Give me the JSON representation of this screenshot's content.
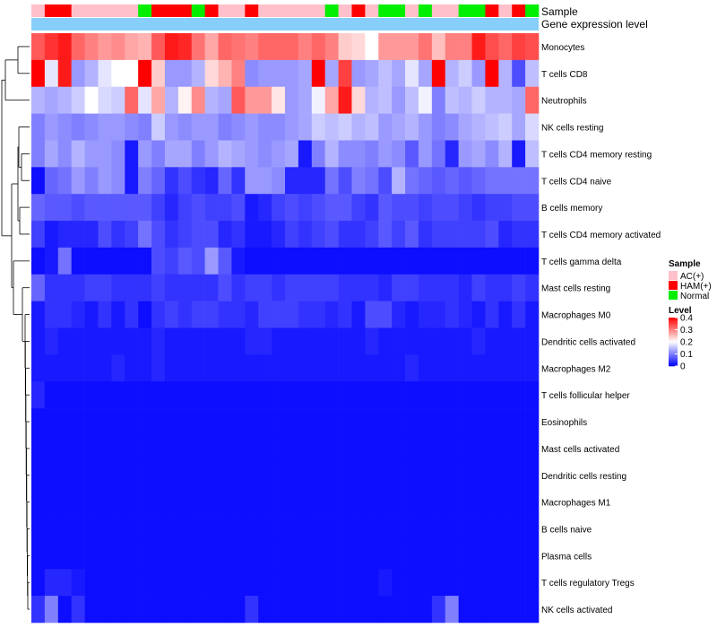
{
  "chart_data": {
    "type": "heatmap",
    "title": "",
    "annotation_labels": [
      "Sample",
      "Gene expression level"
    ],
    "sample_groups": [
      "AC(+)",
      "HAM(+)",
      "HAM(+)",
      "AC(+)",
      "AC(+)",
      "AC(+)",
      "AC(+)",
      "AC(+)",
      "Normal",
      "HAM(+)",
      "HAM(+)",
      "HAM(+)",
      "Normal",
      "HAM(+)",
      "AC(+)",
      "AC(+)",
      "HAM(+)",
      "AC(+)",
      "AC(+)",
      "AC(+)",
      "AC(+)",
      "AC(+)",
      "Normal",
      "AC(+)",
      "HAM(+)",
      "AC(+)",
      "Normal",
      "Normal",
      "AC(+)",
      "Normal",
      "AC(+)",
      "AC(+)",
      "Normal",
      "Normal",
      "HAM(+)",
      "AC(+)",
      "HAM(+)",
      "Normal"
    ],
    "rows": [
      {
        "name": "Monocytes",
        "values": [
          0.33,
          0.36,
          0.38,
          0.32,
          0.3,
          0.28,
          0.29,
          0.27,
          0.26,
          0.33,
          0.38,
          0.37,
          0.31,
          0.27,
          0.32,
          0.31,
          0.3,
          0.32,
          0.32,
          0.32,
          0.3,
          0.32,
          0.3,
          0.24,
          0.23,
          0.2,
          0.28,
          0.28,
          0.28,
          0.31,
          0.25,
          0.3,
          0.3,
          0.38,
          0.34,
          0.32,
          0.35,
          0.34
        ]
      },
      {
        "name": "T cells CD8",
        "values": [
          0.4,
          0.18,
          0.38,
          0.12,
          0.14,
          0.18,
          0.2,
          0.2,
          0.4,
          0.24,
          0.12,
          0.12,
          0.14,
          0.23,
          0.26,
          0.3,
          0.11,
          0.12,
          0.12,
          0.12,
          0.13,
          0.4,
          0.13,
          0.35,
          0.12,
          0.13,
          0.15,
          0.13,
          0.18,
          0.13,
          0.4,
          0.14,
          0.16,
          0.12,
          0.4,
          0.14,
          0.06,
          0.15
        ]
      },
      {
        "name": "Neutrophils",
        "values": [
          0.14,
          0.13,
          0.14,
          0.16,
          0.2,
          0.17,
          0.16,
          0.32,
          0.18,
          0.27,
          0.14,
          0.21,
          0.29,
          0.14,
          0.13,
          0.33,
          0.28,
          0.28,
          0.22,
          0.12,
          0.13,
          0.19,
          0.27,
          0.38,
          0.23,
          0.14,
          0.15,
          0.12,
          0.15,
          0.19,
          0.1,
          0.15,
          0.14,
          0.16,
          0.14,
          0.14,
          0.13,
          0.32
        ]
      },
      {
        "name": "NK cells resting",
        "values": [
          0.1,
          0.12,
          0.11,
          0.1,
          0.11,
          0.12,
          0.12,
          0.11,
          0.1,
          0.16,
          0.12,
          0.11,
          0.12,
          0.12,
          0.1,
          0.11,
          0.12,
          0.11,
          0.11,
          0.12,
          0.13,
          0.16,
          0.15,
          0.16,
          0.14,
          0.15,
          0.12,
          0.13,
          0.14,
          0.12,
          0.1,
          0.11,
          0.13,
          0.14,
          0.15,
          0.16,
          0.13,
          0.17
        ]
      },
      {
        "name": "T cells CD4 memory resting",
        "values": [
          0.1,
          0.13,
          0.11,
          0.14,
          0.12,
          0.12,
          0.11,
          0.02,
          0.12,
          0.1,
          0.13,
          0.13,
          0.1,
          0.12,
          0.14,
          0.13,
          0.12,
          0.11,
          0.12,
          0.13,
          0.02,
          0.1,
          0.14,
          0.11,
          0.11,
          0.1,
          0.12,
          0.11,
          0.07,
          0.12,
          0.09,
          0.03,
          0.12,
          0.13,
          0.11,
          0.14,
          0.02,
          0.15
        ]
      },
      {
        "name": "T cells CD4 naive",
        "values": [
          0.01,
          0.08,
          0.09,
          0.12,
          0.1,
          0.12,
          0.11,
          0.02,
          0.1,
          0.08,
          0.04,
          0.06,
          0.04,
          0.03,
          0.08,
          0.04,
          0.12,
          0.12,
          0.11,
          0.03,
          0.03,
          0.03,
          0.09,
          0.06,
          0.1,
          0.09,
          0.06,
          0.14,
          0.09,
          0.08,
          0.07,
          0.08,
          0.07,
          0.08,
          0.09,
          0.09,
          0.09,
          0.09
        ]
      },
      {
        "name": "B cells memory",
        "values": [
          0.08,
          0.07,
          0.07,
          0.06,
          0.07,
          0.07,
          0.07,
          0.07,
          0.07,
          0.05,
          0.03,
          0.05,
          0.06,
          0.05,
          0.05,
          0.06,
          0.02,
          0.03,
          0.05,
          0.06,
          0.05,
          0.06,
          0.07,
          0.07,
          0.05,
          0.04,
          0.07,
          0.06,
          0.06,
          0.05,
          0.06,
          0.06,
          0.05,
          0.04,
          0.05,
          0.05,
          0.06,
          0.06
        ]
      },
      {
        "name": "T cells CD4 memory activated",
        "values": [
          0.05,
          0.02,
          0.03,
          0.03,
          0.03,
          0.06,
          0.04,
          0.05,
          0.09,
          0.06,
          0.04,
          0.05,
          0.06,
          0.06,
          0.03,
          0.04,
          0.02,
          0.02,
          0.03,
          0.05,
          0.04,
          0.05,
          0.06,
          0.04,
          0.04,
          0.05,
          0.07,
          0.05,
          0.07,
          0.04,
          0.05,
          0.05,
          0.05,
          0.05,
          0.06,
          0.03,
          0.04,
          0.04
        ]
      },
      {
        "name": "T cells gamma delta",
        "values": [
          0.01,
          0.02,
          0.09,
          0.01,
          0.01,
          0.01,
          0.01,
          0.01,
          0.01,
          0.06,
          0.05,
          0.07,
          0.06,
          0.12,
          0.07,
          0.02,
          0.01,
          0.01,
          0.01,
          0.01,
          0.01,
          0.01,
          0.01,
          0.01,
          0.01,
          0.01,
          0.01,
          0.01,
          0.01,
          0.01,
          0.01,
          0.01,
          0.01,
          0.01,
          0.01,
          0.01,
          0.01,
          0.01
        ]
      },
      {
        "name": "Mast cells resting",
        "values": [
          0.08,
          0.04,
          0.04,
          0.04,
          0.05,
          0.05,
          0.04,
          0.04,
          0.04,
          0.05,
          0.04,
          0.04,
          0.04,
          0.04,
          0.06,
          0.04,
          0.05,
          0.05,
          0.04,
          0.05,
          0.05,
          0.05,
          0.05,
          0.04,
          0.04,
          0.04,
          0.03,
          0.05,
          0.05,
          0.04,
          0.04,
          0.04,
          0.03,
          0.05,
          0.04,
          0.04,
          0.05,
          0.04
        ]
      },
      {
        "name": "Macrophages M0",
        "values": [
          0.02,
          0.04,
          0.04,
          0.03,
          0.02,
          0.04,
          0.02,
          0.04,
          0.01,
          0.04,
          0.05,
          0.04,
          0.05,
          0.05,
          0.04,
          0.04,
          0.03,
          0.05,
          0.05,
          0.05,
          0.04,
          0.04,
          0.03,
          0.04,
          0.02,
          0.06,
          0.06,
          0.03,
          0.02,
          0.03,
          0.03,
          0.04,
          0.03,
          0.02,
          0.04,
          0.02,
          0.04,
          0.02
        ]
      },
      {
        "name": "Dendritic cells activated",
        "values": [
          0.02,
          0.03,
          0.02,
          0.02,
          0.02,
          0.02,
          0.02,
          0.02,
          0.02,
          0.03,
          0.02,
          0.02,
          0.02,
          0.02,
          0.02,
          0.02,
          0.03,
          0.03,
          0.02,
          0.02,
          0.02,
          0.02,
          0.02,
          0.02,
          0.02,
          0.03,
          0.02,
          0.02,
          0.02,
          0.02,
          0.02,
          0.02,
          0.02,
          0.03,
          0.02,
          0.02,
          0.02,
          0.02
        ]
      },
      {
        "name": "Macrophages M2",
        "values": [
          0.02,
          0.02,
          0.02,
          0.02,
          0.02,
          0.02,
          0.03,
          0.02,
          0.02,
          0.03,
          0.02,
          0.02,
          0.02,
          0.02,
          0.02,
          0.02,
          0.02,
          0.02,
          0.02,
          0.02,
          0.02,
          0.02,
          0.02,
          0.02,
          0.02,
          0.02,
          0.02,
          0.02,
          0.03,
          0.02,
          0.02,
          0.02,
          0.02,
          0.02,
          0.02,
          0.02,
          0.02,
          0.02
        ]
      },
      {
        "name": "T cells follicular helper",
        "values": [
          0.03,
          0.01,
          0.01,
          0.01,
          0.01,
          0.01,
          0.01,
          0.01,
          0.01,
          0.01,
          0.01,
          0.01,
          0.01,
          0.01,
          0.01,
          0.01,
          0.01,
          0.01,
          0.01,
          0.01,
          0.01,
          0.01,
          0.01,
          0.01,
          0.01,
          0.01,
          0.01,
          0.01,
          0.01,
          0.01,
          0.01,
          0.01,
          0.01,
          0.01,
          0.01,
          0.01,
          0.01,
          0.01
        ]
      },
      {
        "name": "Eosinophils",
        "values": [
          0.01,
          0.01,
          0.01,
          0.01,
          0.01,
          0.01,
          0.01,
          0.01,
          0.01,
          0.01,
          0.01,
          0.01,
          0.01,
          0.01,
          0.01,
          0.01,
          0.01,
          0.01,
          0.01,
          0.01,
          0.01,
          0.01,
          0.01,
          0.01,
          0.01,
          0.01,
          0.01,
          0.01,
          0.01,
          0.01,
          0.01,
          0.01,
          0.01,
          0.01,
          0.01,
          0.01,
          0.01,
          0.01
        ]
      },
      {
        "name": "Mast cells activated",
        "values": [
          0.01,
          0.01,
          0.01,
          0.01,
          0.01,
          0.01,
          0.01,
          0.01,
          0.01,
          0.01,
          0.01,
          0.01,
          0.01,
          0.01,
          0.01,
          0.01,
          0.01,
          0.01,
          0.01,
          0.01,
          0.01,
          0.01,
          0.01,
          0.01,
          0.01,
          0.01,
          0.01,
          0.01,
          0.01,
          0.01,
          0.01,
          0.01,
          0.01,
          0.01,
          0.01,
          0.01,
          0.01,
          0.01
        ]
      },
      {
        "name": "Dendritic cells resting",
        "values": [
          0.01,
          0.01,
          0.01,
          0.01,
          0.01,
          0.01,
          0.01,
          0.01,
          0.01,
          0.01,
          0.01,
          0.01,
          0.01,
          0.01,
          0.01,
          0.01,
          0.01,
          0.01,
          0.01,
          0.01,
          0.01,
          0.01,
          0.01,
          0.01,
          0.01,
          0.01,
          0.01,
          0.01,
          0.01,
          0.01,
          0.01,
          0.01,
          0.01,
          0.01,
          0.01,
          0.01,
          0.01,
          0.01
        ]
      },
      {
        "name": "Macrophages M1",
        "values": [
          0.01,
          0.01,
          0.01,
          0.01,
          0.01,
          0.01,
          0.01,
          0.01,
          0.01,
          0.01,
          0.01,
          0.01,
          0.01,
          0.01,
          0.01,
          0.01,
          0.01,
          0.01,
          0.01,
          0.01,
          0.01,
          0.01,
          0.01,
          0.01,
          0.01,
          0.01,
          0.01,
          0.01,
          0.01,
          0.01,
          0.01,
          0.01,
          0.01,
          0.01,
          0.01,
          0.01,
          0.01,
          0.01
        ]
      },
      {
        "name": "B cells naive",
        "values": [
          0.01,
          0.01,
          0.01,
          0.01,
          0.01,
          0.01,
          0.01,
          0.01,
          0.01,
          0.01,
          0.01,
          0.01,
          0.01,
          0.01,
          0.01,
          0.01,
          0.01,
          0.01,
          0.01,
          0.01,
          0.01,
          0.01,
          0.01,
          0.01,
          0.01,
          0.01,
          0.01,
          0.01,
          0.01,
          0.01,
          0.01,
          0.01,
          0.01,
          0.01,
          0.01,
          0.01,
          0.01,
          0.01
        ]
      },
      {
        "name": "Plasma cells",
        "values": [
          0.01,
          0.01,
          0.01,
          0.01,
          0.01,
          0.01,
          0.01,
          0.01,
          0.01,
          0.01,
          0.01,
          0.01,
          0.01,
          0.01,
          0.01,
          0.01,
          0.01,
          0.01,
          0.01,
          0.01,
          0.01,
          0.01,
          0.01,
          0.01,
          0.01,
          0.01,
          0.01,
          0.01,
          0.01,
          0.01,
          0.01,
          0.01,
          0.01,
          0.01,
          0.01,
          0.01,
          0.01,
          0.01
        ]
      },
      {
        "name": "T cells regulatory  Tregs",
        "values": [
          0.01,
          0.03,
          0.03,
          0.02,
          0.01,
          0.01,
          0.01,
          0.01,
          0.01,
          0.01,
          0.01,
          0.01,
          0.01,
          0.01,
          0.01,
          0.01,
          0.01,
          0.01,
          0.01,
          0.01,
          0.01,
          0.01,
          0.01,
          0.01,
          0.01,
          0.01,
          0.02,
          0.01,
          0.01,
          0.01,
          0.01,
          0.01,
          0.01,
          0.01,
          0.01,
          0.01,
          0.01,
          0.01
        ]
      },
      {
        "name": "NK cells activated",
        "values": [
          0.04,
          0.1,
          0.01,
          0.04,
          0.01,
          0.01,
          0.01,
          0.01,
          0.01,
          0.01,
          0.01,
          0.01,
          0.01,
          0.01,
          0.01,
          0.01,
          0.04,
          0.01,
          0.01,
          0.01,
          0.01,
          0.01,
          0.01,
          0.01,
          0.01,
          0.01,
          0.01,
          0.01,
          0.01,
          0.01,
          0.04,
          0.1,
          0.01,
          0.01,
          0.01,
          0.01,
          0.01,
          0.01
        ]
      }
    ],
    "color_scale": {
      "title": "Level",
      "min": 0,
      "max": 0.4,
      "ticks": [
        0.4,
        0.3,
        0.2,
        0.1,
        0
      ],
      "colors": [
        "#0000ff",
        "#ffffff",
        "#ff0000"
      ]
    },
    "sample_legend": {
      "title": "Sample",
      "entries": [
        {
          "label": "AC(+)",
          "color": "#ffc0cb"
        },
        {
          "label": "HAM(+)",
          "color": "#ff0000"
        },
        {
          "label": "Normal",
          "color": "#00ee00"
        }
      ]
    },
    "expression_bar_color": "#87cefa"
  }
}
